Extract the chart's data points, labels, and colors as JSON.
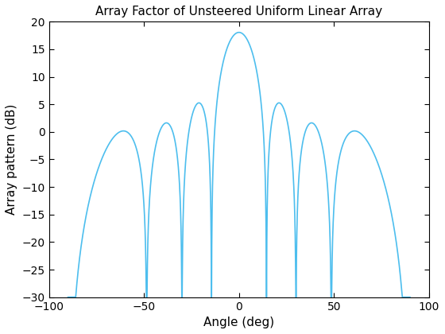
{
  "title": "Array Factor of Unsteered Uniform Linear Array",
  "xlabel": "Angle (deg)",
  "ylabel": "Array pattern (dB)",
  "xlim": [
    -100,
    100
  ],
  "ylim": [
    -30,
    20
  ],
  "line_color": "#4DBEEE",
  "line_width": 1.2,
  "N": 8,
  "d_over_lambda": 0.5,
  "num_points": 5000,
  "background_color": "#ffffff",
  "xticks": [
    -100,
    -50,
    0,
    50,
    100
  ],
  "yticks": [
    -30,
    -25,
    -20,
    -15,
    -10,
    -5,
    0,
    5,
    10,
    15,
    20
  ]
}
